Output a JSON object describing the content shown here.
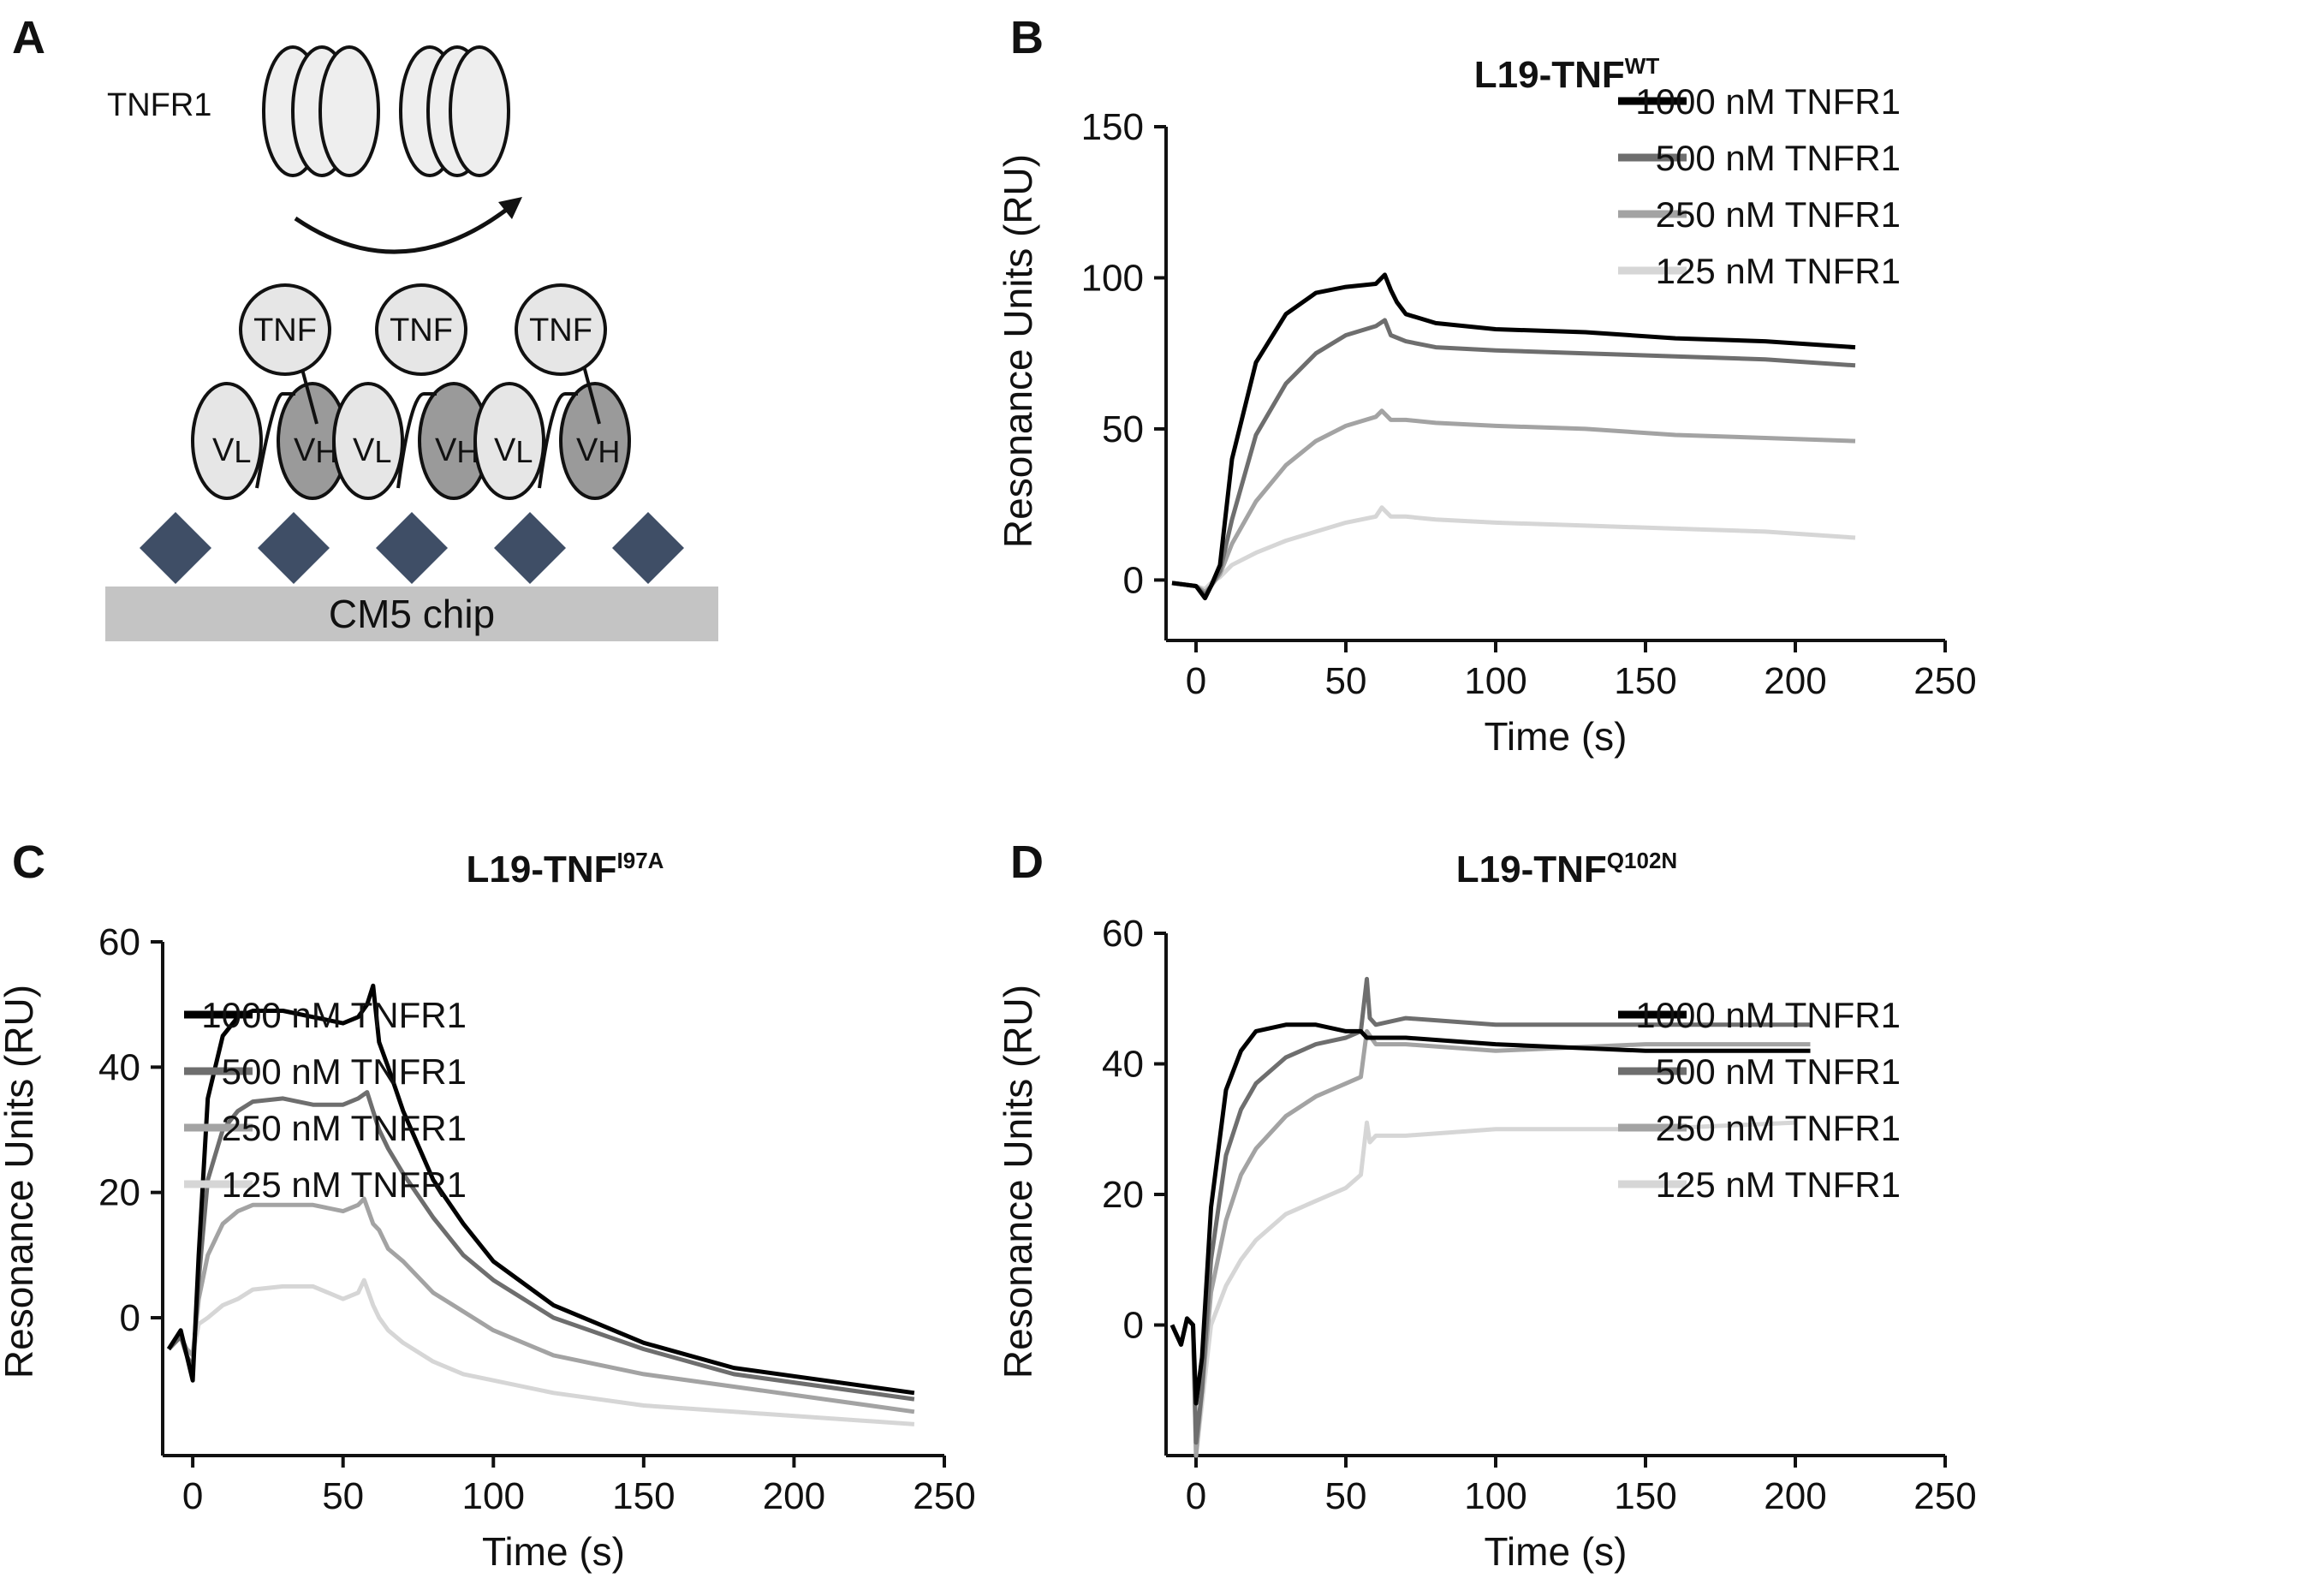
{
  "panel_labels": {
    "a": "A",
    "b": "B",
    "c": "C",
    "d": "D"
  },
  "schematic": {
    "receptor_label": "TNFR1",
    "tnf_label": "TNF",
    "vl_label": "V",
    "vl_sub": "L",
    "vh_label": "V",
    "vh_sub": "H",
    "chip_label": "CM5 chip",
    "colors": {
      "tnf_fill": "#e6e6e6",
      "vh_fill": "#9a9a9a",
      "vl_fill": "#e6e6e6",
      "diamond": "#3f4e66",
      "chip": "#c4c4c4",
      "receptor": "#eeeeee"
    }
  },
  "series_styles": [
    {
      "name": "1000 nM TNFR1",
      "color": "#000000"
    },
    {
      "name": "500 nM TNFR1",
      "color": "#6e6e6e"
    },
    {
      "name": "250 nM TNFR1",
      "color": "#a3a3a3"
    },
    {
      "name": "125 nM TNFR1",
      "color": "#d6d6d6"
    }
  ],
  "chart_data": [
    {
      "id": "B",
      "type": "line",
      "title": "L19-TNF",
      "title_sup": "WT",
      "xlabel": "Time (s)",
      "ylabel": "Resonance Units (RU)",
      "xlim": [
        -10,
        250
      ],
      "ylim": [
        -20,
        150
      ],
      "xticks": [
        0,
        50,
        100,
        150,
        200,
        250
      ],
      "yticks": [
        0,
        50,
        100,
        150
      ],
      "legend": "top-right",
      "series": [
        {
          "name": "1000 nM TNFR1",
          "x": [
            -8,
            0,
            3,
            5,
            8,
            12,
            20,
            30,
            40,
            50,
            60,
            63,
            65,
            67,
            70,
            80,
            100,
            130,
            160,
            190,
            220
          ],
          "y": [
            -1,
            -2,
            -6,
            -2,
            5,
            40,
            72,
            88,
            95,
            97,
            98,
            101,
            96,
            92,
            88,
            85,
            83,
            82,
            80,
            79,
            77
          ]
        },
        {
          "name": "500 nM TNFR1",
          "x": [
            -8,
            0,
            3,
            5,
            8,
            12,
            20,
            30,
            40,
            50,
            60,
            63,
            65,
            70,
            80,
            100,
            130,
            160,
            190,
            220
          ],
          "y": [
            -1,
            -2,
            -5,
            -2,
            3,
            20,
            48,
            65,
            75,
            81,
            84,
            86,
            81,
            79,
            77,
            76,
            75,
            74,
            73,
            71
          ]
        },
        {
          "name": "250 nM TNFR1",
          "x": [
            -8,
            0,
            3,
            5,
            8,
            12,
            20,
            30,
            40,
            50,
            60,
            62,
            65,
            70,
            80,
            100,
            130,
            160,
            190,
            220
          ],
          "y": [
            -1,
            -2,
            -4,
            -2,
            2,
            12,
            26,
            38,
            46,
            51,
            54,
            56,
            53,
            53,
            52,
            51,
            50,
            48,
            47,
            46
          ]
        },
        {
          "name": "125 nM TNFR1",
          "x": [
            -8,
            0,
            3,
            5,
            8,
            12,
            20,
            30,
            40,
            50,
            60,
            62,
            65,
            70,
            80,
            100,
            130,
            160,
            190,
            220
          ],
          "y": [
            -1,
            -2,
            -3,
            -1,
            1,
            5,
            9,
            13,
            16,
            19,
            21,
            24,
            21,
            21,
            20,
            19,
            18,
            17,
            16,
            14
          ]
        }
      ]
    },
    {
      "id": "C",
      "type": "line",
      "title": "L19-TNF",
      "title_sup": "I97A",
      "xlabel": "Time (s)",
      "ylabel": "Resonance Units (RU)",
      "xlim": [
        -10,
        250
      ],
      "ylim": [
        -22,
        60
      ],
      "xticks": [
        0,
        50,
        100,
        150,
        200,
        250
      ],
      "yticks": [
        0,
        20,
        40,
        60
      ],
      "legend": "top-right",
      "series": [
        {
          "name": "1000 nM TNFR1",
          "x": [
            -8,
            -4,
            -2,
            0,
            2,
            5,
            10,
            15,
            20,
            30,
            40,
            50,
            55,
            58,
            60,
            62,
            65,
            70,
            80,
            90,
            100,
            120,
            150,
            180,
            210,
            240
          ],
          "y": [
            -5,
            -2,
            -6,
            -10,
            10,
            35,
            45,
            48,
            49,
            49,
            48,
            47,
            48,
            50,
            53,
            44,
            40,
            33,
            22,
            15,
            9,
            2,
            -4,
            -8,
            -10,
            -12
          ]
        },
        {
          "name": "500 nM TNFR1",
          "x": [
            -8,
            -4,
            -2,
            0,
            2,
            5,
            10,
            15,
            20,
            30,
            40,
            50,
            55,
            58,
            60,
            62,
            65,
            70,
            80,
            90,
            100,
            120,
            150,
            180,
            210,
            240
          ],
          "y": [
            -5,
            -3,
            -6,
            -8,
            6,
            22,
            30,
            33,
            34.5,
            35,
            34,
            34,
            35,
            36,
            33,
            30,
            27,
            23,
            16,
            10,
            6,
            0,
            -5,
            -9,
            -11,
            -13
          ]
        },
        {
          "name": "250 nM TNFR1",
          "x": [
            -8,
            -4,
            -2,
            0,
            2,
            5,
            10,
            15,
            20,
            30,
            40,
            50,
            55,
            57,
            60,
            62,
            65,
            70,
            80,
            90,
            100,
            120,
            150,
            180,
            210,
            240
          ],
          "y": [
            -5,
            -3,
            -5,
            -6,
            3,
            10,
            15,
            17,
            18,
            18,
            18,
            17,
            18,
            19,
            15,
            14,
            11,
            9,
            4,
            1,
            -2,
            -6,
            -9,
            -11,
            -13,
            -15
          ]
        },
        {
          "name": "125 nM TNFR1",
          "x": [
            -8,
            -4,
            -2,
            0,
            2,
            5,
            10,
            15,
            20,
            30,
            40,
            50,
            55,
            57,
            60,
            62,
            65,
            70,
            80,
            90,
            100,
            120,
            150,
            180,
            210,
            240
          ],
          "y": [
            -5,
            -3,
            -5,
            -6,
            -1,
            0,
            2,
            3,
            4.5,
            5,
            5,
            3,
            4,
            6,
            2,
            0,
            -2,
            -4,
            -7,
            -9,
            -10,
            -12,
            -14,
            -15,
            -16,
            -17
          ]
        }
      ]
    },
    {
      "id": "D",
      "type": "line",
      "title": "L19-TNF",
      "title_sup": "Q102N",
      "xlabel": "Time (s)",
      "ylabel": "Resonance Units (RU)",
      "xlim": [
        -10,
        250
      ],
      "ylim": [
        -20,
        60
      ],
      "xticks": [
        0,
        50,
        100,
        150,
        200,
        250
      ],
      "yticks": [
        0,
        20,
        40,
        60
      ],
      "legend": "top-right",
      "series": [
        {
          "name": "1000 nM TNFR1",
          "x": [
            -8,
            -5,
            -3,
            -1,
            0,
            2,
            5,
            10,
            15,
            20,
            30,
            40,
            50,
            55,
            57,
            60,
            70,
            100,
            150,
            205
          ],
          "y": [
            0,
            -3,
            1,
            0,
            -12,
            -5,
            18,
            36,
            42,
            45,
            46,
            46,
            45,
            45,
            44,
            44,
            44,
            43,
            42,
            42
          ]
        },
        {
          "name": "500 nM TNFR1",
          "x": [
            -8,
            -5,
            -3,
            -1,
            0,
            2,
            5,
            10,
            15,
            20,
            30,
            40,
            50,
            55,
            57,
            58,
            60,
            70,
            100,
            150,
            205
          ],
          "y": [
            0,
            -3,
            1,
            0,
            -18,
            -10,
            10,
            26,
            33,
            37,
            41,
            43,
            44,
            45,
            53,
            47,
            46,
            47,
            46,
            46,
            46
          ]
        },
        {
          "name": "250 nM TNFR1",
          "x": [
            -8,
            -5,
            -3,
            -1,
            0,
            2,
            5,
            10,
            15,
            20,
            30,
            40,
            50,
            55,
            57,
            60,
            70,
            100,
            150,
            205
          ],
          "y": [
            0,
            -3,
            1,
            0,
            -20,
            -10,
            5,
            16,
            23,
            27,
            32,
            35,
            37,
            38,
            45,
            43,
            43,
            42,
            43,
            43
          ]
        },
        {
          "name": "125 nM TNFR1",
          "x": [
            -8,
            -5,
            -3,
            -1,
            0,
            2,
            5,
            10,
            15,
            20,
            30,
            40,
            50,
            55,
            57,
            58,
            60,
            70,
            100,
            150,
            200
          ],
          "y": [
            0,
            -3,
            1,
            0,
            -20,
            -12,
            0,
            6,
            10,
            13,
            17,
            19,
            21,
            23,
            31,
            28,
            29,
            29,
            30,
            30,
            31
          ]
        }
      ]
    }
  ]
}
